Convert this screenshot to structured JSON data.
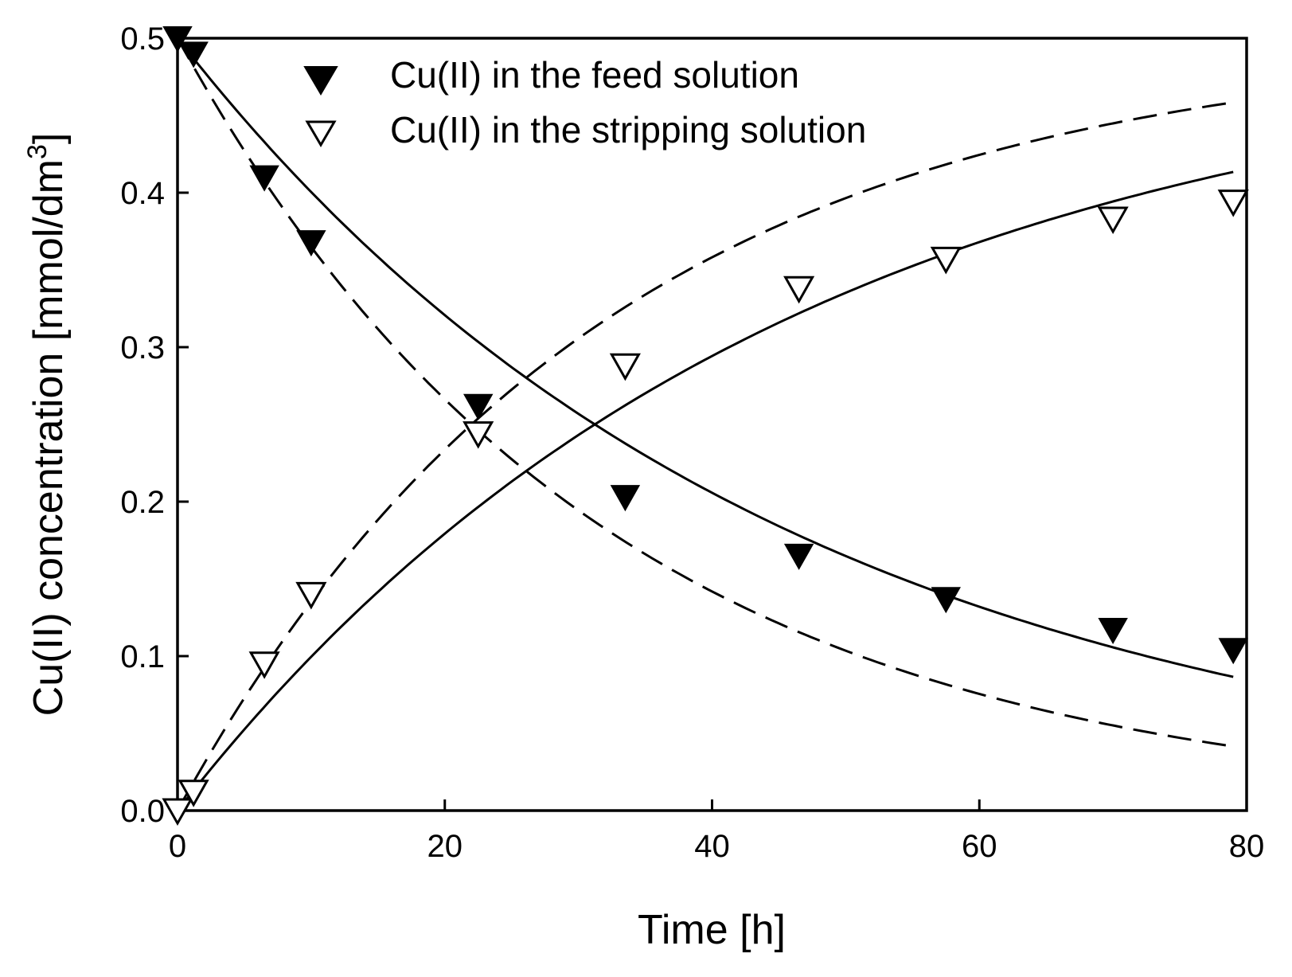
{
  "chart_data": {
    "type": "scatter",
    "title": "",
    "xlabel": "Time [h]",
    "ylabel": "Cu(II) concentration [mmol/dm",
    "ylabel_superscript": "3",
    "ylabel_suffix": "]",
    "xlim": [
      0,
      80
    ],
    "ylim": [
      0,
      0.5
    ],
    "xticks": [
      0,
      20,
      40,
      60,
      80
    ],
    "xtick_labels": [
      "0",
      "20",
      "40",
      "60",
      "80"
    ],
    "yticks": [
      0.0,
      0.1,
      0.2,
      0.3,
      0.4,
      0.5
    ],
    "ytick_labels": [
      "0.0",
      "0.1",
      "0.2",
      "0.3",
      "0.4",
      "0.5"
    ],
    "grid": false,
    "legend_position": "top",
    "series": [
      {
        "name": "Cu(II) in the feed solution",
        "marker": "filled-down-triangle",
        "x": [
          0,
          1.2,
          6.5,
          10,
          22.5,
          33.5,
          46.5,
          57.5,
          70,
          79
        ],
        "y": [
          0.5,
          0.49,
          0.41,
          0.368,
          0.262,
          0.203,
          0.165,
          0.137,
          0.117,
          0.104
        ]
      },
      {
        "name": "Cu(II) in the stripping solution",
        "marker": "open-down-triangle",
        "x": [
          0,
          1.2,
          6.5,
          10,
          22.5,
          33.5,
          46.5,
          57.5,
          70,
          79
        ],
        "y": [
          0.0,
          0.012,
          0.095,
          0.14,
          0.244,
          0.288,
          0.338,
          0.357,
          0.383,
          0.394
        ]
      }
    ],
    "fitted_curves": [
      {
        "style": "solid",
        "kind": "decay",
        "c0": 0.5,
        "k": 0.0222,
        "x_range": [
          0,
          79
        ]
      },
      {
        "style": "solid",
        "kind": "rise",
        "cmax": 0.5,
        "k": 0.0222,
        "x_range": [
          0,
          79
        ]
      },
      {
        "style": "dashed",
        "kind": "decay",
        "c0": 0.5,
        "k": 0.0315,
        "x_range": [
          0,
          79
        ]
      },
      {
        "style": "dashed",
        "kind": "rise",
        "cmax": 0.5,
        "k": 0.0315,
        "x_range": [
          0,
          79
        ]
      }
    ]
  }
}
